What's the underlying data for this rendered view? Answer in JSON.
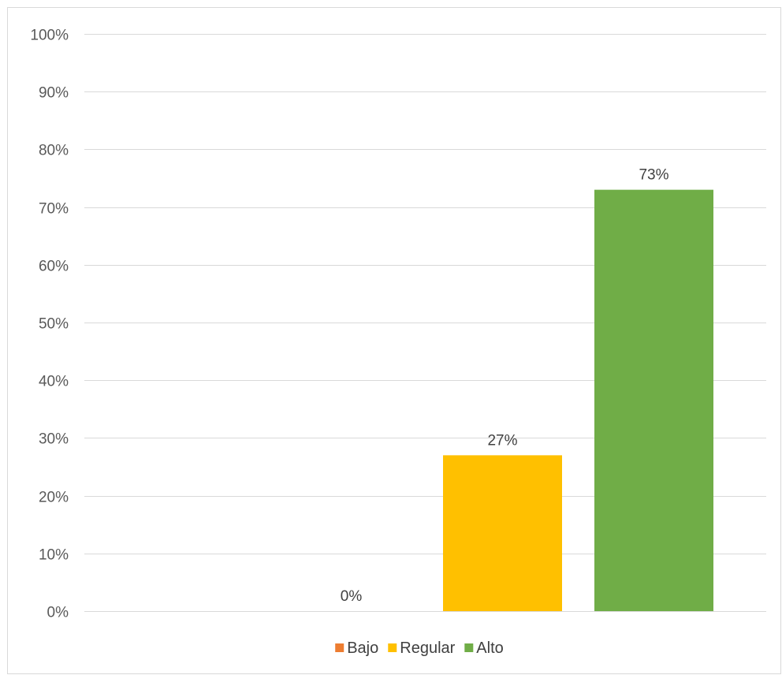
{
  "chart_data": {
    "type": "bar",
    "series": [
      {
        "name": "Bajo",
        "value": 0,
        "label": "0%",
        "color": "#ED7D31"
      },
      {
        "name": "Regular",
        "value": 27,
        "label": "27%",
        "color": "#FFC000"
      },
      {
        "name": "Alto",
        "value": 73,
        "label": "73%",
        "color": "#70AD47"
      }
    ],
    "ylim": [
      0,
      100
    ],
    "ytick_step": 10,
    "yticks": [
      "0%",
      "10%",
      "20%",
      "30%",
      "40%",
      "50%",
      "60%",
      "70%",
      "80%",
      "90%",
      "100%"
    ],
    "grid": true,
    "legend_position": "bottom",
    "gridline_color": "#D9D9D9",
    "frame_color": "#D9D9D9"
  }
}
